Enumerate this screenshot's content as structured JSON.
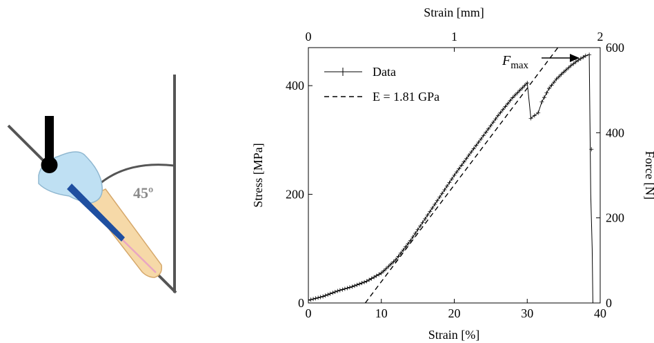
{
  "figure": {
    "diagram": {
      "angle_label": "45º",
      "colors": {
        "crown": "#bfe0f3",
        "root": "#f6d9a8",
        "post": "#1f4fa0",
        "canal": "#e9a6c2",
        "indenter": "#000000",
        "frame": "#555555"
      }
    },
    "chart_data": {
      "type": "line",
      "xlabel": "Strain [%]",
      "ylabel": "Stress [MPa]",
      "x2label": "Strain [mm]",
      "y2label": "Force [N]",
      "xlim": [
        0,
        40
      ],
      "ylim": [
        0,
        470
      ],
      "x_ticks": [
        "0",
        "10",
        "20",
        "30",
        "40"
      ],
      "y_ticks": [
        "0",
        "200",
        "400"
      ],
      "x2lim": [
        0,
        2
      ],
      "x2_ticks": [
        "0",
        "1",
        "2"
      ],
      "y2lim": [
        0,
        600
      ],
      "y2_ticks": [
        "0",
        "200",
        "400",
        "600"
      ],
      "legend_position": "top-left",
      "series": [
        {
          "name": "Data",
          "style": "solid-with-plus-markers",
          "x": [
            0,
            2,
            4,
            6,
            8,
            10,
            12,
            14,
            16,
            18,
            20,
            22,
            24,
            26,
            28,
            30,
            30.5,
            31,
            31.5,
            32,
            33,
            34,
            35,
            36,
            37,
            38,
            38.5,
            38.7,
            38.9,
            39.0
          ],
          "y": [
            5,
            12,
            22,
            30,
            40,
            55,
            80,
            115,
            155,
            195,
            235,
            272,
            308,
            345,
            378,
            405,
            340,
            345,
            350,
            370,
            395,
            412,
            425,
            437,
            447,
            455,
            457,
            200,
            100,
            0
          ]
        },
        {
          "name": "E = 1.81 GPa",
          "style": "dashed",
          "x": [
            7.8,
            34.2
          ],
          "y": [
            0,
            470
          ]
        }
      ],
      "annotations": [
        {
          "text": "F",
          "subscript": "max"
        }
      ]
    }
  }
}
